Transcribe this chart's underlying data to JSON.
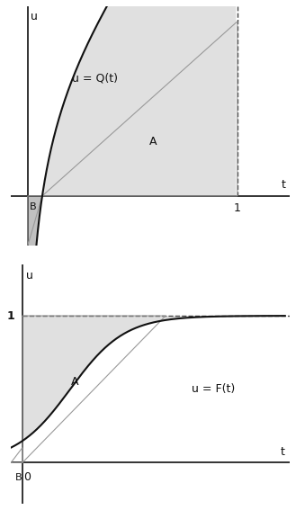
{
  "fig_width": 3.29,
  "fig_height": 5.67,
  "dpi": 100,
  "bg_color": "#ffffff",
  "curve_color": "#111111",
  "fill_color_A": "#e0e0e0",
  "fill_color_B": "#c0c0c0",
  "triangle_line_color": "#999999",
  "dashed_color": "#444444",
  "axis_color": "#111111",
  "text_color": "#111111",
  "graph1": {
    "title": "u = Q(t)",
    "xlabel": "t",
    "ylabel": "u",
    "xlim": [
      -0.08,
      1.25
    ],
    "ylim": [
      -0.55,
      2.1
    ],
    "dashed_x": 1.0,
    "label_A": "A",
    "label_B": "B",
    "label_1": "1",
    "label_u": "u",
    "label_t": "t"
  },
  "graph2": {
    "title": "u = F(t)",
    "xlabel": "t",
    "ylabel": "u",
    "xlim": [
      -0.12,
      2.8
    ],
    "ylim": [
      -0.28,
      1.35
    ],
    "dashed_y": 1.0,
    "label_A": "A",
    "label_B": "B",
    "label_1": "1",
    "label_0": "0",
    "label_u": "u",
    "label_t": "t"
  }
}
